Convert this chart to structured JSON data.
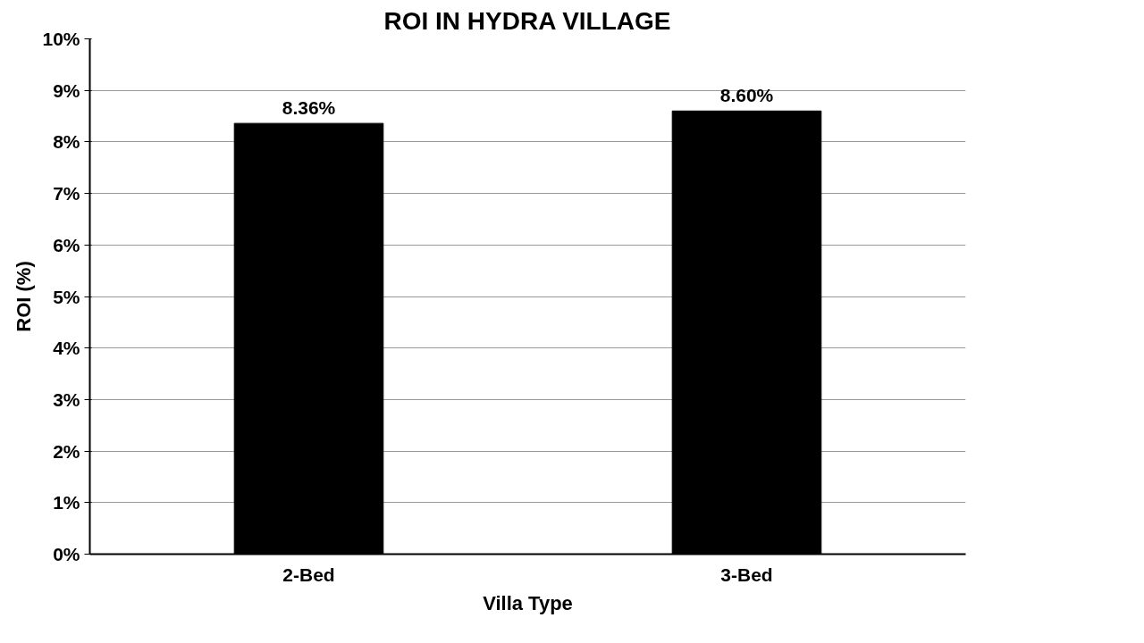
{
  "chart_data": {
    "type": "bar",
    "title": "ROI IN HYDRA VILLAGE",
    "xlabel": "Villa Type",
    "ylabel": "ROI (%)",
    "categories": [
      "2-Bed",
      "3-Bed"
    ],
    "values": [
      8.36,
      8.6
    ],
    "value_labels": [
      "8.36%",
      "8.60%"
    ],
    "color": "#000000",
    "ylim": [
      0,
      10
    ],
    "yticks": [
      {
        "value": 0,
        "label": "0%"
      },
      {
        "value": 1,
        "label": "1%"
      },
      {
        "value": 2,
        "label": "2%"
      },
      {
        "value": 3,
        "label": "3%"
      },
      {
        "value": 4,
        "label": "4%"
      },
      {
        "value": 5,
        "label": "5%"
      },
      {
        "value": 6,
        "label": "6%"
      },
      {
        "value": 7,
        "label": "7%"
      },
      {
        "value": 8,
        "label": "8%"
      },
      {
        "value": 9,
        "label": "9%"
      },
      {
        "value": 10,
        "label": "10%"
      }
    ],
    "grid": "y"
  }
}
